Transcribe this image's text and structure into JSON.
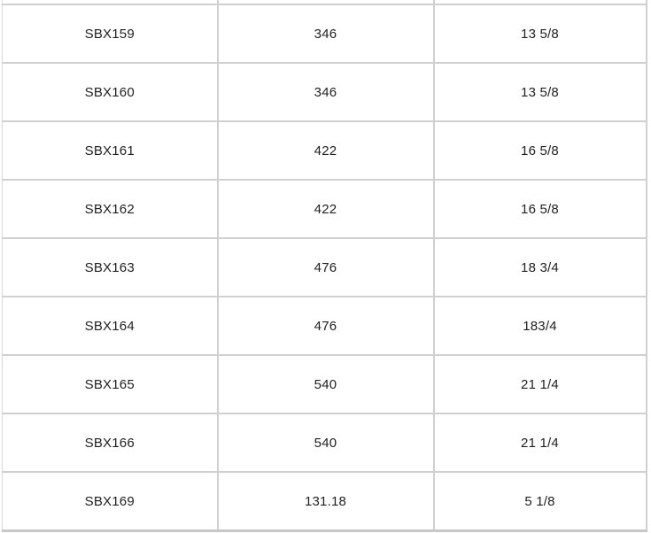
{
  "table": {
    "rows": [
      [
        "SBX159",
        "346",
        "13 5/8"
      ],
      [
        "SBX160",
        "346",
        "13 5/8"
      ],
      [
        "SBX161",
        "422",
        "16 5/8"
      ],
      [
        "SBX162",
        "422",
        "16 5/8"
      ],
      [
        "SBX163",
        "476",
        "18 3/4"
      ],
      [
        "SBX164",
        "476",
        "183/4"
      ],
      [
        "SBX165",
        "540",
        "21 1/4"
      ],
      [
        "SBX166",
        "540",
        "21 1/4"
      ],
      [
        "SBX169",
        "131.18",
        "5 1/8"
      ]
    ]
  },
  "colors": {
    "border": "#d0d0d0",
    "border_bottom": "#c8c8c8",
    "text": "#212121",
    "background": "#ffffff"
  }
}
